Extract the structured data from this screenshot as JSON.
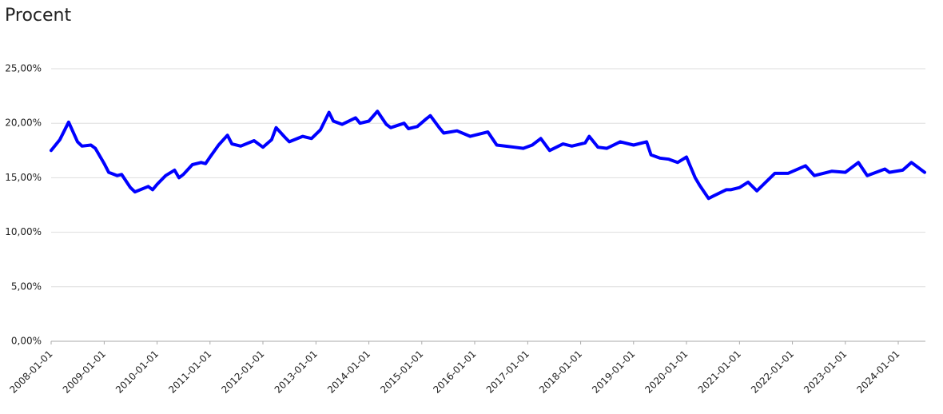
{
  "chart_data": {
    "type": "line",
    "title": "Procent",
    "x": [
      "2008-01-01",
      "2008-03-01",
      "2008-05-01",
      "2008-07-01",
      "2008-08-01",
      "2008-10-01",
      "2008-11-01",
      "2009-01-01",
      "2009-02-01",
      "2009-04-01",
      "2009-05-01",
      "2009-07-01",
      "2009-08-01",
      "2009-11-01",
      "2009-12-01",
      "2010-01-01",
      "2010-03-01",
      "2010-05-01",
      "2010-06-01",
      "2010-07-01",
      "2010-09-01",
      "2010-11-01",
      "2010-12-01",
      "2011-01-01",
      "2011-03-01",
      "2011-05-01",
      "2011-06-01",
      "2011-08-01",
      "2011-11-01",
      "2012-01-01",
      "2012-03-01",
      "2012-04-01",
      "2012-06-01",
      "2012-07-01",
      "2012-10-01",
      "2012-12-01",
      "2013-02-01",
      "2013-04-01",
      "2013-05-01",
      "2013-07-01",
      "2013-10-01",
      "2013-11-01",
      "2014-01-01",
      "2014-03-01",
      "2014-05-01",
      "2014-06-01",
      "2014-09-01",
      "2014-10-01",
      "2014-12-01",
      "2015-02-01",
      "2015-03-01",
      "2015-05-01",
      "2015-06-01",
      "2015-09-01",
      "2015-12-01",
      "2016-04-01",
      "2016-06-01",
      "2016-10-01",
      "2016-12-01",
      "2017-02-01",
      "2017-04-01",
      "2017-06-01",
      "2017-09-01",
      "2017-11-01",
      "2018-02-01",
      "2018-03-01",
      "2018-05-01",
      "2018-07-01",
      "2018-10-01",
      "2019-01-01",
      "2019-04-01",
      "2019-05-01",
      "2019-07-01",
      "2019-09-01",
      "2019-11-01",
      "2020-01-01",
      "2020-03-01",
      "2020-04-01",
      "2020-06-01",
      "2020-07-01",
      "2020-10-01",
      "2020-11-01",
      "2021-01-01",
      "2021-03-01",
      "2021-05-01",
      "2021-09-01",
      "2021-12-01",
      "2022-04-01",
      "2022-06-01",
      "2022-10-01",
      "2023-01-01",
      "2023-04-01",
      "2023-06-01",
      "2023-10-01",
      "2023-11-01",
      "2024-02-01",
      "2024-04-01",
      "2024-07-01"
    ],
    "series": [
      {
        "color": "#0000ff",
        "values": [
          17.5,
          18.5,
          20.1,
          18.3,
          17.9,
          18.0,
          17.7,
          16.3,
          15.5,
          15.2,
          15.3,
          14.1,
          13.7,
          14.2,
          13.9,
          14.4,
          15.2,
          15.7,
          15.0,
          15.3,
          16.2,
          16.4,
          16.3,
          16.9,
          18.0,
          18.9,
          18.1,
          17.9,
          18.4,
          17.8,
          18.5,
          19.6,
          18.7,
          18.3,
          18.8,
          18.6,
          19.4,
          21.0,
          20.2,
          19.9,
          20.5,
          20.0,
          20.2,
          21.1,
          19.9,
          19.6,
          20.0,
          19.5,
          19.7,
          20.4,
          20.7,
          19.6,
          19.1,
          19.3,
          18.8,
          19.2,
          18.0,
          17.8,
          17.7,
          18.0,
          18.6,
          17.5,
          18.1,
          17.9,
          18.2,
          18.8,
          17.8,
          17.7,
          18.3,
          18.0,
          18.3,
          17.1,
          16.8,
          16.7,
          16.4,
          16.9,
          15.0,
          14.3,
          13.1,
          13.3,
          13.9,
          13.9,
          14.1,
          14.6,
          13.8,
          15.4,
          15.4,
          16.1,
          15.2,
          15.6,
          15.5,
          16.4,
          15.2,
          15.8,
          15.5,
          15.7,
          16.4,
          15.5
        ]
      }
    ],
    "xlim": [
      "2008-01-01",
      "2024-07-01"
    ],
    "xticks": [
      "2008-01-01",
      "2009-01-01",
      "2010-01-01",
      "2011-01-01",
      "2012-01-01",
      "2013-01-01",
      "2014-01-01",
      "2015-01-01",
      "2016-01-01",
      "2017-01-01",
      "2018-01-01",
      "2019-01-01",
      "2020-01-01",
      "2021-01-01",
      "2022-01-01",
      "2023-01-01",
      "2024-01-01"
    ],
    "ylim": [
      0,
      25
    ],
    "yticks": [
      {
        "value": 0,
        "label": "0,00%"
      },
      {
        "value": 5,
        "label": "5,00%"
      },
      {
        "value": 10,
        "label": "10,00%"
      },
      {
        "value": 15,
        "label": "15,00%"
      },
      {
        "value": 20,
        "label": "20,00%"
      },
      {
        "value": 25,
        "label": "25,00%"
      }
    ],
    "grid": true
  }
}
